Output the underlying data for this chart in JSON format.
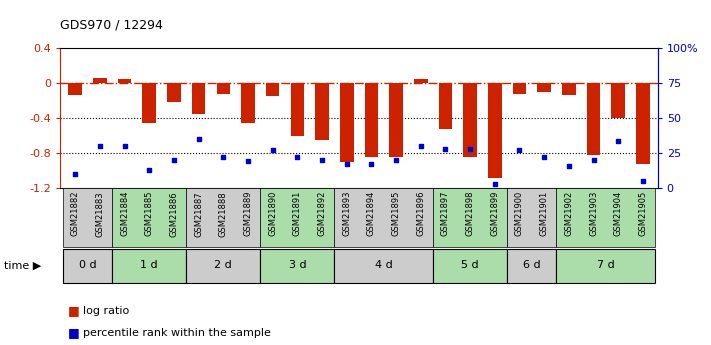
{
  "title": "GDS970 / 12294",
  "samples": [
    "GSM21882",
    "GSM21883",
    "GSM21884",
    "GSM21885",
    "GSM21886",
    "GSM21887",
    "GSM21888",
    "GSM21889",
    "GSM21890",
    "GSM21891",
    "GSM21892",
    "GSM21893",
    "GSM21894",
    "GSM21895",
    "GSM21896",
    "GSM21897",
    "GSM21898",
    "GSM21899",
    "GSM21900",
    "GSM21901",
    "GSM21902",
    "GSM21903",
    "GSM21904",
    "GSM21905"
  ],
  "log_ratio": [
    -0.13,
    0.06,
    0.05,
    -0.45,
    -0.22,
    -0.35,
    -0.12,
    -0.45,
    -0.15,
    -0.6,
    -0.65,
    -0.9,
    -0.85,
    -0.85,
    0.05,
    -0.52,
    -0.85,
    -1.08,
    -0.12,
    -0.1,
    -0.13,
    -0.82,
    -0.4,
    -0.92
  ],
  "percentile": [
    10,
    30,
    30,
    13,
    20,
    35,
    22,
    19,
    27,
    22,
    20,
    17,
    17,
    20,
    30,
    28,
    28,
    3,
    27,
    22,
    16,
    20,
    34,
    5
  ],
  "time_labels": [
    "0 d",
    "1 d",
    "2 d",
    "3 d",
    "4 d",
    "5 d",
    "6 d",
    "7 d"
  ],
  "time_ranges": [
    [
      0,
      2
    ],
    [
      2,
      5
    ],
    [
      5,
      8
    ],
    [
      8,
      11
    ],
    [
      11,
      15
    ],
    [
      15,
      18
    ],
    [
      18,
      20
    ],
    [
      20,
      24
    ]
  ],
  "bar_color": "#cc2200",
  "dot_color": "#0000cc",
  "ylim_left": [
    -1.2,
    0.4
  ],
  "ylim_right": [
    0,
    100
  ],
  "yticks_left": [
    -1.2,
    -0.8,
    -0.4,
    0,
    0.4
  ],
  "yticks_right": [
    0,
    25,
    50,
    75,
    100
  ],
  "ytick_right_labels": [
    "0",
    "25",
    "50",
    "75",
    "100%"
  ],
  "hline_y": 0,
  "dotted_lines": [
    -0.4,
    -0.8
  ],
  "bg_color": "#ffffff",
  "group_colors_even": "#cccccc",
  "group_colors_odd": "#aaddaa",
  "legend_log_ratio": "log ratio",
  "legend_percentile": "percentile rank within the sample"
}
